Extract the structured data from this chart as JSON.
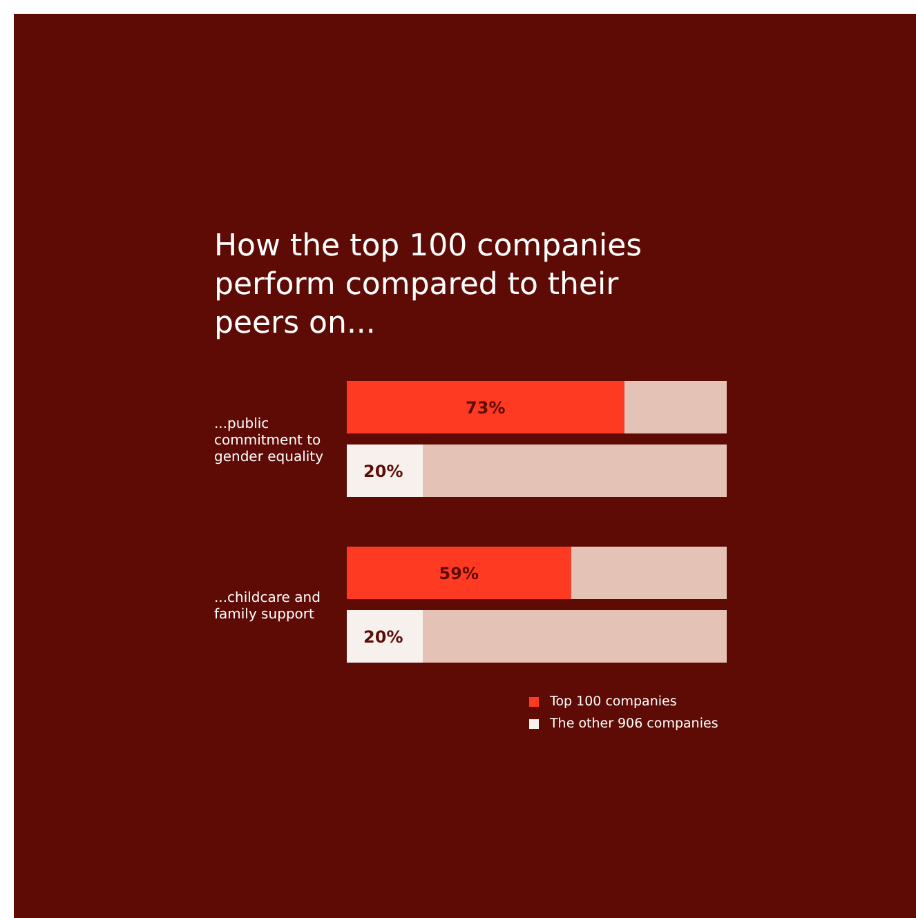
{
  "chart_data": {
    "type": "bar",
    "orientation": "horizontal",
    "title": "How the top 100 companies perform compared to their peers on...",
    "categories": [
      "...public commitment to gender equality",
      "...childcare and family support"
    ],
    "series": [
      {
        "name": "Top 100 companies",
        "color": "#ff3a22",
        "values": [
          73,
          59
        ],
        "value_labels": [
          "73%",
          "59%"
        ]
      },
      {
        "name": "The other 906 companies",
        "color": "#f7f1ee",
        "values": [
          20,
          20
        ],
        "value_labels": [
          "20%",
          "20%"
        ]
      }
    ],
    "xlim": [
      0,
      100
    ],
    "tick_labels": "y",
    "legend": "bottom right"
  }
}
